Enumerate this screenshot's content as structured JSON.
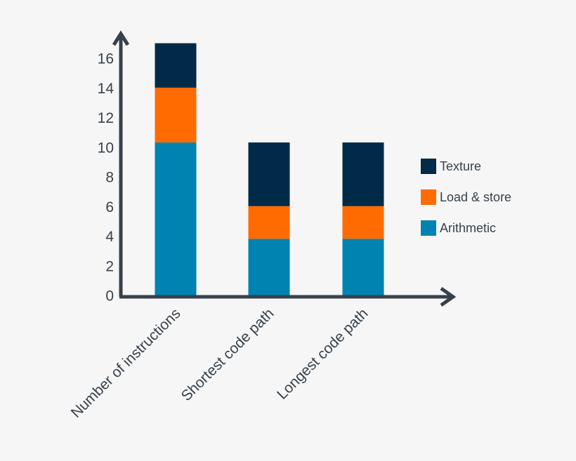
{
  "chart_data": {
    "type": "bar",
    "stacked": true,
    "categories": [
      "Number of instructions",
      "Shortest code path",
      "Longest code path"
    ],
    "series": [
      {
        "name": "Arithmetic",
        "values": [
          10.3,
          3.8,
          3.8
        ],
        "color": "#0083b0"
      },
      {
        "name": "Load & store",
        "values": [
          3.7,
          2.2,
          2.2
        ],
        "color": "#ff6b00"
      },
      {
        "name": "Texture",
        "values": [
          3.0,
          4.3,
          4.3
        ],
        "color": "#012a48"
      }
    ],
    "yticks": [
      0,
      2,
      4,
      6,
      8,
      10,
      12,
      14,
      16
    ],
    "ylim": [
      0,
      16
    ],
    "title": "",
    "xlabel": "",
    "ylabel": "",
    "grid": false,
    "legend_position": "right",
    "axis_color": "#37414a"
  }
}
